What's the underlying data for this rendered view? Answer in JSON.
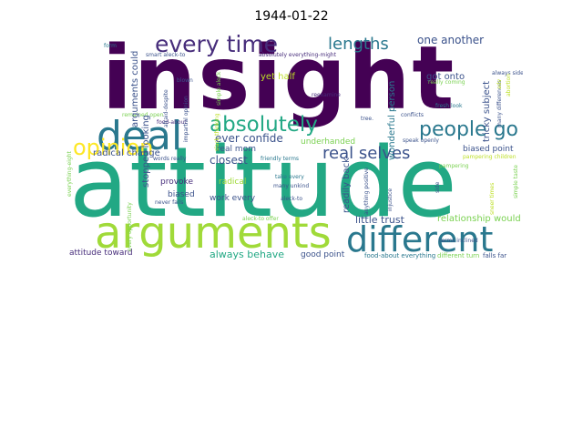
{
  "title": "1944-01-22",
  "words": {
    "insight": {
      "text": "insight",
      "color": "#440154"
    },
    "attitude": {
      "text": "attitude",
      "color": "#22a884"
    },
    "arguments": {
      "text": "arguments",
      "color": "#a0da39"
    },
    "deal": {
      "text": "deal",
      "color": "#2a788e"
    },
    "different": {
      "text": "different",
      "color": "#2a788e"
    },
    "every_time": {
      "text": "every time",
      "color": "#472d7b"
    },
    "absolutely": {
      "text": "absolutely",
      "color": "#22a884"
    },
    "opinion": {
      "text": "opinion",
      "color": "#fde725"
    },
    "people_go": {
      "text": "people go",
      "color": "#2a788e"
    },
    "real_selves": {
      "text": "real selves",
      "color": "#3b528b"
    },
    "lengths": {
      "text": "lengths",
      "color": "#2a788e"
    },
    "one_another": {
      "text": "one another",
      "color": "#3b528b"
    },
    "little_trust": {
      "text": "little trust",
      "color": "#3b528b"
    },
    "always_behave": {
      "text": "always behave",
      "color": "#22a884"
    },
    "relationship_would": {
      "text": "relationship would",
      "color": "#7ad151"
    },
    "ever_confide": {
      "text": "ever confide",
      "color": "#3b528b"
    },
    "radical_change": {
      "text": "radical change",
      "color": "#3b528b"
    },
    "closest": {
      "text": "closest",
      "color": "#3b528b"
    },
    "underhanded": {
      "text": "underhanded",
      "color": "#7ad151"
    },
    "biased_point": {
      "text": "biased point",
      "color": "#3b528b"
    },
    "real_mom": {
      "text": "real mom",
      "color": "#3b528b"
    },
    "provoke": {
      "text": "provoke",
      "color": "#472d7b"
    },
    "radical": {
      "text": "radical",
      "color": "#a0da39"
    },
    "biased": {
      "text": "biased",
      "color": "#3b528b"
    },
    "work_every": {
      "text": "work every",
      "color": "#3b528b"
    },
    "yet_half": {
      "text": "yet half",
      "color": "#bddf26"
    },
    "got_onto": {
      "text": "got onto",
      "color": "#3b528b"
    },
    "attitude_toward": {
      "text": "attitude toward",
      "color": "#472d7b"
    },
    "good_point": {
      "text": "good point",
      "color": "#3b528b"
    },
    "readily_back": {
      "text": "readily back",
      "color": "#3b528b"
    },
    "wonderful_person": {
      "text": "wonderful person",
      "color": "#2a788e"
    },
    "tricky_subject": {
      "text": "tricky subject",
      "color": "#3b528b"
    },
    "arguments_could": {
      "text": "arguments could",
      "color": "#3b528b"
    },
    "stopped_looking": {
      "text": "stopped looking",
      "color": "#3b528b"
    },
    "friendly_terms": {
      "text": "friendly terms",
      "color": "#2a788e"
    },
    "food_about_everything": {
      "text": "food-about everything",
      "color": "#2a788e"
    },
    "different_turn": {
      "text": "different turn",
      "color": "#7ad151"
    },
    "falls_far": {
      "text": "falls far",
      "color": "#3b528b"
    },
    "aleck_to_offer": {
      "text": "aleck-to offer",
      "color": "#7ad151"
    },
    "smart_aleck_to": {
      "text": "smart aleck-to",
      "color": "#3b528b"
    },
    "absolutely_everything_might": {
      "text": "absolutely everything-might",
      "color": "#472d7b"
    },
    "always_side": {
      "text": "always side",
      "color": "#3b528b"
    },
    "fresh_look": {
      "text": "fresh look",
      "color": "#2a788e"
    },
    "speak_openly": {
      "text": "speak openly",
      "color": "#3b528b"
    },
    "pampering_children": {
      "text": "pampering children",
      "color": "#bddf26"
    },
    "terms_inclined": {
      "text": "terms inclined",
      "color": "#3b528b"
    },
    "conflicts": {
      "text": "conflicts",
      "color": "#3b528b"
    },
    "tree": {
      "text": "tree.",
      "color": "#3b528b"
    },
    "reexamine": {
      "text": "reexamine",
      "color": "#472d7b"
    },
    "remained_open": {
      "text": "remained open",
      "color": "#7ad151"
    },
    "words_really": {
      "text": "words really",
      "color": "#3b528b"
    },
    "many_unkind": {
      "text": "many unkind",
      "color": "#3b528b"
    },
    "take_every": {
      "text": "take every",
      "color": "#2a788e"
    },
    "aleck_to": {
      "text": "aleck-to",
      "color": "#3b528b"
    },
    "never_falls": {
      "text": "never falls",
      "color": "#3b528b"
    },
    "food_about": {
      "text": "food-about",
      "color": "#472d7b"
    },
    "blown": {
      "text": "blown",
      "color": "#3b528b"
    },
    "form": {
      "text": "form",
      "color": "#2a788e"
    },
    "really_coming": {
      "text": "really coming",
      "color": "#7ad151"
    },
    "pampering": {
      "text": "pampering",
      "color": "#7ad151"
    },
    "everything_eight": {
      "text": "everything-eight",
      "color": "#7ad151"
    },
    "every_opportunity": {
      "text": "every opportunity",
      "color": "#7ad151"
    },
    "afraid_despite": {
      "text": "afraid-despite",
      "color": "#3b528b"
    },
    "impartial_opinion": {
      "text": "impartial opinion",
      "color": "#3b528b"
    },
    "simple_aleck": {
      "text": "simple aleck",
      "color": "#7ad151"
    },
    "many_differences": {
      "text": "many differences",
      "color": "#3b528b"
    },
    "side": {
      "text": "side",
      "color": "#3b528b"
    },
    "injustice": {
      "text": "injustice",
      "color": "#3b528b"
    },
    "abortion": {
      "text": "abortion",
      "color": "#bddf26"
    },
    "adv": {
      "text": "adv",
      "color": "#bddf26"
    },
    "anything_positive": {
      "text": "anything positive",
      "color": "#3b528b"
    },
    "sneer_times": {
      "text": "sneer times",
      "color": "#bddf26"
    },
    "simple_taste": {
      "text": "simple taste",
      "color": "#7ad151"
    },
    "slack_thinking": {
      "text": "slack thinking",
      "color": "#bddf26"
    },
    "attitude_small": {
      "text": "attitude toward",
      "color": "#472d7b"
    }
  }
}
